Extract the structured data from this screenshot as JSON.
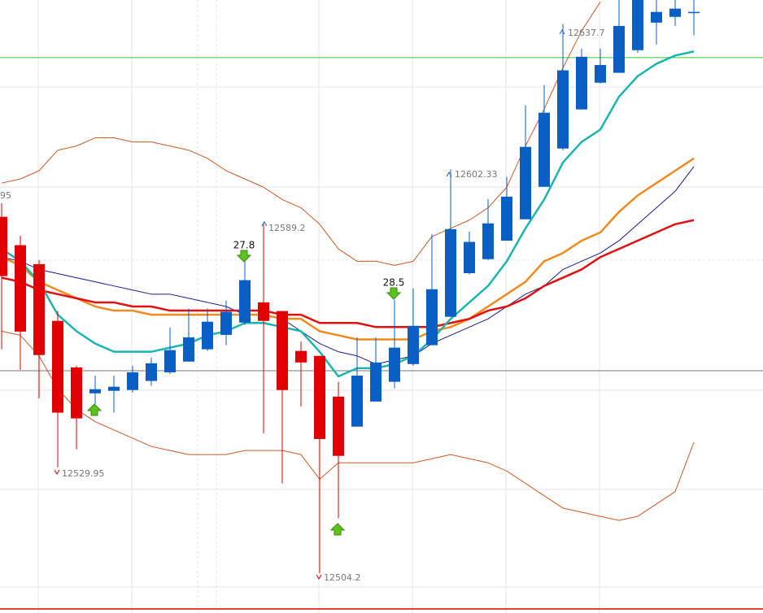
{
  "chart_data": {
    "type": "candlestick",
    "ylim": [
      12494.5,
      12643.5
    ],
    "up_color": "#0a5fc4",
    "down_color": "#e00000",
    "open": [
      12590.8,
      12583.9,
      12579.3,
      12565.5,
      12554.2,
      12547.9,
      12548.5,
      12548.7,
      12550.9,
      12553.0,
      12555.6,
      12558.6,
      12562.1,
      12565.1,
      12570.0,
      12567.9,
      12558.2,
      12557.0,
      12547.1,
      12539.8,
      12545.9,
      12550.7,
      12555.0,
      12559.6,
      12566.5,
      12577.1,
      12580.5,
      12585.0,
      12590.2,
      12598.1,
      12607.4,
      12616.9,
      12623.4,
      12625.8,
      12631.3,
      12638.0,
      12639.4,
      12640.4
    ],
    "high": [
      12594.1,
      12586.2,
      12580.3,
      12567.9,
      12554.6,
      12552.2,
      12552.2,
      12554.6,
      12556.6,
      12563.9,
      12568.5,
      12568.5,
      12570.4,
      12579.9,
      12589.2,
      12567.9,
      12560.5,
      12557.0,
      12550.7,
      12561.5,
      12561.5,
      12570.6,
      12573.4,
      12586.6,
      12602.33,
      12587.2,
      12595.1,
      12600.5,
      12617.9,
      12622.8,
      12637.7,
      12631.7,
      12631.7,
      12643.5,
      12643.5,
      12643.5,
      12643.5,
      12643.5
    ],
    "low": [
      12558.6,
      12553.6,
      12546.7,
      12529.95,
      12534.3,
      12545.3,
      12543.2,
      12548.1,
      12549.7,
      12552.6,
      12555.6,
      12558.2,
      12559.6,
      12564.5,
      12538.2,
      12526.0,
      12544.7,
      12504.2,
      12517.5,
      12539.8,
      12545.9,
      12549.1,
      12554.6,
      12559.6,
      12566.5,
      12576.8,
      12580.3,
      12585.0,
      12590.2,
      12598.1,
      12607.0,
      12616.9,
      12623.2,
      12625.8,
      12630.7,
      12632.7,
      12637.2,
      12634.9
    ],
    "close": [
      12576.4,
      12562.9,
      12557.2,
      12543.2,
      12541.8,
      12548.9,
      12549.5,
      12553.0,
      12555.2,
      12558.4,
      12561.5,
      12565.3,
      12567.7,
      12575.4,
      12565.5,
      12548.7,
      12555.4,
      12536.8,
      12532.7,
      12552.2,
      12555.4,
      12559.0,
      12564.3,
      12573.2,
      12587.8,
      12584.7,
      12589.2,
      12595.7,
      12607.8,
      12616.1,
      12626.4,
      12629.7,
      12627.7,
      12637.2,
      12643.5,
      12640.6,
      12641.4,
      12640.6
    ],
    "overlays": [
      {
        "color": "#c85a28",
        "width": 1,
        "values": [
          12599,
          12600,
          12602,
          12607,
          12608,
          12610,
          12610,
          12609,
          12609,
          12608,
          12607,
          12605,
          12602,
          12600,
          12598,
          12595,
          12593,
          12589,
          12583,
          12580,
          12580,
          12579,
          12580,
          12586,
          12588,
          12590,
          12593,
          12598,
          12608,
          12617,
          12627,
          12636,
          12643,
          null,
          null,
          null,
          null,
          null
        ]
      },
      {
        "color": "#c85a28",
        "width": 1,
        "values": [
          12563,
          12562,
          12557,
          12549,
          12544,
          12541,
          12539,
          12537,
          12535,
          12534,
          12533,
          12533,
          12533,
          12534,
          12534,
          12534,
          12533,
          12527,
          12531,
          12531,
          12531,
          12531,
          12531,
          12532,
          12533,
          12532,
          12531,
          12529,
          12526,
          12523,
          12520,
          12519,
          12518,
          12517,
          12518,
          12521,
          12524,
          12536
        ]
      },
      {
        "color": "#1a1a8c",
        "width": 1,
        "values": [
          12581,
          12580,
          12578,
          12577,
          12576,
          12575,
          12574,
          12573,
          12572,
          12572,
          12571,
          12570,
          12569,
          12567,
          12567,
          12566,
          12563,
          12560,
          12558,
          12557,
          12555,
          12556,
          12557,
          12560,
          12562,
          12564,
          12566,
          12569,
          12572,
          12574,
          12578,
          12580,
          12582,
          12585,
          12589,
          12593,
          12597,
          12603
        ]
      },
      {
        "color": "#f08a1c",
        "width": 2.5,
        "values": [
          12581,
          12579,
          12575,
          12573,
          12571,
          12569,
          12568,
          12568,
          12567,
          12567,
          12567,
          12567,
          12567,
          12567,
          12567,
          12566,
          12566,
          12563,
          12562,
          12561,
          12561,
          12561,
          12561,
          12563,
          12564,
          12566,
          12569,
          12572,
          12575,
          12580,
          12582,
          12585,
          12587,
          12592,
          12596,
          12599,
          12602,
          12605
        ]
      },
      {
        "color": "#e01010",
        "width": 2.5,
        "values": [
          12576,
          12575,
          12573,
          12572,
          12571,
          12570,
          12570,
          12569,
          12569,
          12568,
          12568,
          12568,
          12568,
          12568,
          12568,
          12567,
          12567,
          12565,
          12565,
          12565,
          12564,
          12564,
          12564,
          12564,
          12565,
          12566,
          12568,
          12569,
          12571,
          12574,
          12576,
          12578,
          12581,
          12583,
          12585,
          12587,
          12589,
          12590
        ]
      },
      {
        "color": "#1ab5b0",
        "width": 2.5,
        "values": [
          12583,
          12580,
          12575,
          12567,
          12563,
          12560,
          12558,
          12558,
          12558,
          12559,
          12560,
          12562,
          12563,
          12565,
          12565,
          12564,
          12563,
          12558,
          12552,
          12554,
          12554,
          12555,
          12557,
          12561,
          12566,
          12570,
          12574,
          12580,
          12588,
          12595,
          12604,
          12609,
          12612,
          12620,
          12625,
          12628,
          12630,
          12631
        ]
      }
    ],
    "hlines": [
      {
        "color": "#33cc33",
        "value": 12629.5
      },
      {
        "color": "#777777",
        "value": 12553.4
      }
    ],
    "high_labels": [
      "12589.2",
      "12602.33",
      "12637.7"
    ],
    "low_labels": [
      "12529.95",
      "12504.2"
    ],
    "signal_labels": [
      27.8,
      28.5
    ],
    "cut_label": "95"
  }
}
